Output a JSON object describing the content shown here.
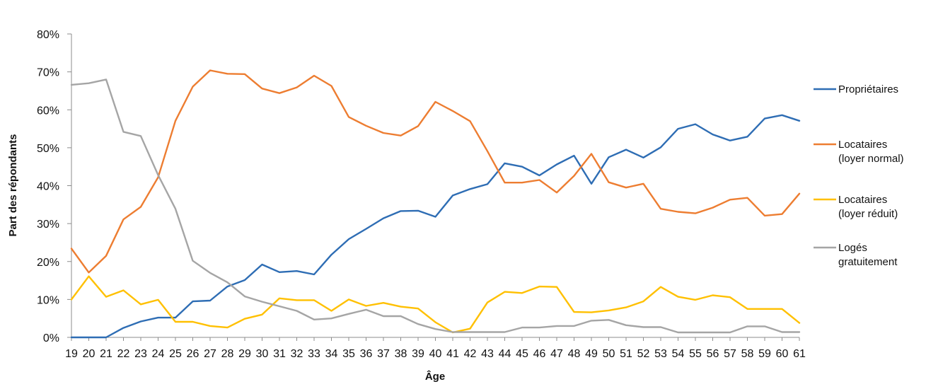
{
  "chart_data": {
    "type": "line",
    "xlabel": "Âge",
    "ylabel": "Part des répondants",
    "ylim": [
      0,
      80
    ],
    "y_ticks": [
      "0%",
      "10%",
      "20%",
      "30%",
      "40%",
      "50%",
      "60%",
      "70%",
      "80%"
    ],
    "grid": false,
    "legend_position": "right",
    "x": [
      19,
      20,
      21,
      22,
      23,
      24,
      25,
      26,
      27,
      28,
      29,
      30,
      31,
      32,
      33,
      34,
      35,
      36,
      37,
      38,
      39,
      40,
      41,
      42,
      43,
      44,
      45,
      46,
      47,
      48,
      49,
      50,
      51,
      52,
      53,
      54,
      55,
      56,
      57,
      58,
      59,
      60,
      61
    ],
    "series": [
      {
        "name": "Propriétaires",
        "legend_lines": [
          "Propriétaires"
        ],
        "color": "#2E6DB4",
        "values": [
          0,
          0,
          0,
          2.5,
          4.2,
          5.2,
          5.2,
          9.5,
          9.7,
          13.4,
          15.1,
          19.2,
          17.2,
          17.5,
          16.6,
          21.8,
          25.9,
          28.6,
          31.4,
          33.3,
          33.4,
          31.8,
          37.4,
          39.1,
          40.4,
          45.9,
          45.0,
          42.7,
          45.6,
          47.9,
          40.5,
          47.5,
          49.5,
          47.4,
          50.1,
          55.0,
          56.2,
          53.5,
          51.9,
          52.9,
          57.7,
          58.6,
          57.1
        ]
      },
      {
        "name": "Locataires (loyer normal)",
        "legend_lines": [
          "Locataires",
          "(loyer normal)"
        ],
        "color": "#ED7D31",
        "values": [
          23.4,
          17.1,
          21.5,
          31.1,
          34.4,
          42.2,
          57.1,
          66.1,
          70.4,
          69.5,
          69.4,
          65.6,
          64.4,
          65.9,
          69.0,
          66.3,
          58.1,
          55.8,
          53.9,
          53.2,
          55.7,
          62.1,
          59.7,
          57.0,
          49.1,
          40.8,
          40.8,
          41.5,
          38.2,
          42.6,
          48.4,
          40.9,
          39.5,
          40.5,
          33.9,
          33.1,
          32.7,
          34.2,
          36.3,
          36.8,
          32.1,
          32.5,
          37.9
        ]
      },
      {
        "name": "Locataires (loyer réduit)",
        "legend_lines": [
          "Locataires",
          "(loyer réduit)"
        ],
        "color": "#FFC000",
        "values": [
          10.0,
          16.1,
          10.7,
          12.4,
          8.7,
          9.9,
          4.1,
          4.1,
          3.0,
          2.6,
          4.9,
          6.0,
          10.3,
          9.8,
          9.8,
          7.0,
          10.0,
          8.3,
          9.1,
          8.1,
          7.6,
          4.0,
          1.3,
          2.3,
          9.2,
          12.0,
          11.7,
          13.4,
          13.3,
          6.7,
          6.6,
          7.1,
          7.9,
          9.5,
          13.3,
          10.7,
          9.9,
          11.1,
          10.6,
          7.5,
          7.5,
          7.5,
          3.8
        ]
      },
      {
        "name": "Logés gratuitement",
        "legend_lines": [
          "Logés",
          "gratuitement"
        ],
        "color": "#A5A5A5",
        "values": [
          66.6,
          67.0,
          68.0,
          54.2,
          53.1,
          42.8,
          33.9,
          20.2,
          17.0,
          14.5,
          10.8,
          9.4,
          8.2,
          7.0,
          4.7,
          5.0,
          6.2,
          7.3,
          5.6,
          5.6,
          3.5,
          2.2,
          1.4,
          1.4,
          1.4,
          1.4,
          2.6,
          2.6,
          3.0,
          3.0,
          4.4,
          4.6,
          3.2,
          2.7,
          2.7,
          1.3,
          1.3,
          1.3,
          1.3,
          2.9,
          2.9,
          1.4,
          1.4
        ]
      }
    ]
  }
}
